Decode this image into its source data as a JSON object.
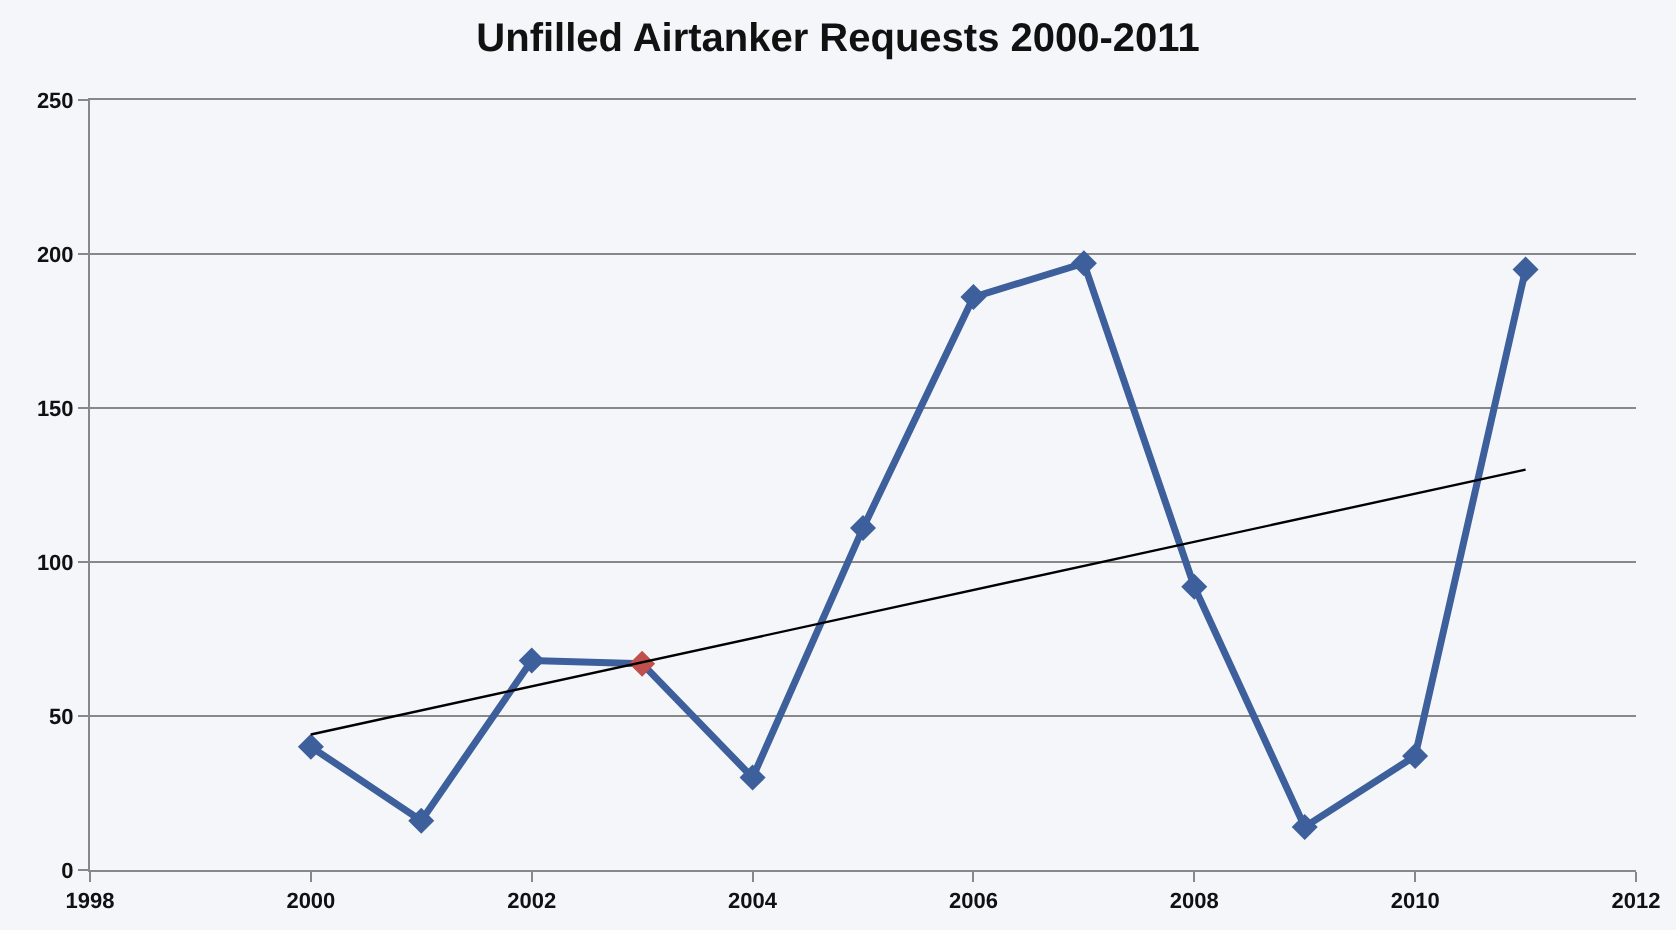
{
  "chart_data": {
    "type": "line",
    "title": "Unfilled Airtanker Requests 2000-2011",
    "x": [
      2000,
      2001,
      2002,
      2003,
      2004,
      2005,
      2006,
      2007,
      2008,
      2009,
      2010,
      2011
    ],
    "series": [
      {
        "color": "#3d5f9c",
        "colors": [
          "#3d5f9c",
          "#3d5f9c",
          "#3d5f9c",
          "#c0504d",
          "#3d5f9c",
          "#3d5f9c",
          "#3d5f9c",
          "#3d5f9c",
          "#3d5f9c",
          "#3d5f9c",
          "#3d5f9c",
          "#3d5f9c"
        ],
        "values": [
          40,
          16,
          68,
          67,
          30,
          111,
          186,
          197,
          92,
          14,
          37,
          195
        ],
        "marker": "diamond"
      },
      {
        "type": "line",
        "x": [
          2000,
          2011
        ],
        "color": "#000000",
        "values": [
          44,
          130
        ],
        "marker": "none"
      }
    ],
    "xlim": [
      1998,
      2012
    ],
    "xticks": [
      1998,
      2000,
      2002,
      2004,
      2006,
      2008,
      2010,
      2012
    ],
    "ylim": [
      0,
      250
    ],
    "yticks": [
      0,
      50,
      100,
      150,
      200,
      250
    ],
    "grid": "y",
    "line_style": "solid"
  }
}
